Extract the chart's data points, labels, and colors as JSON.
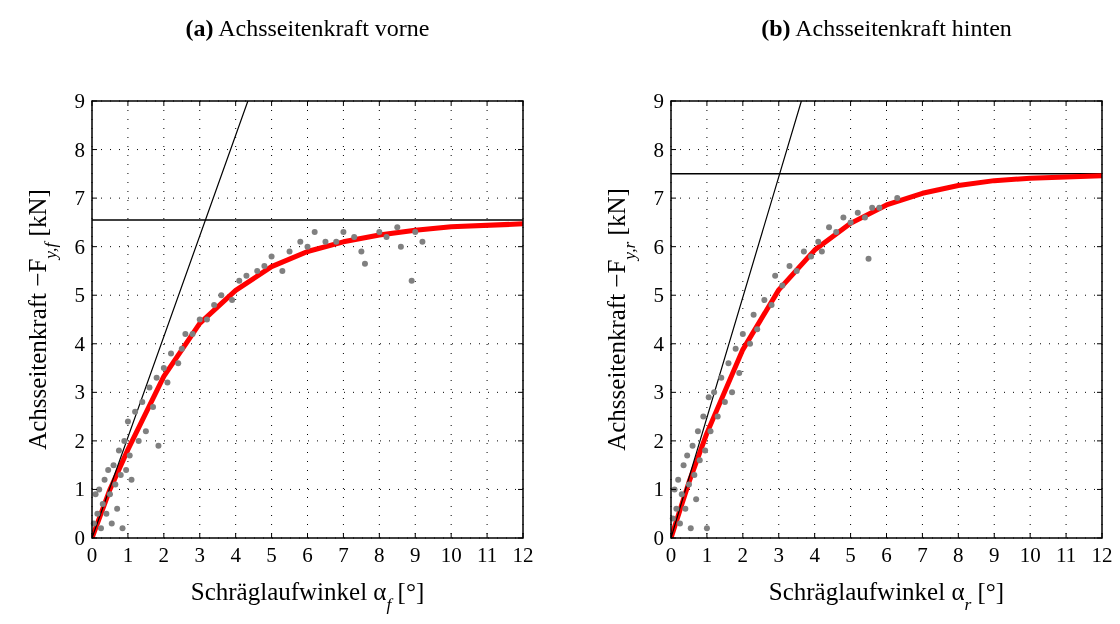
{
  "chart_data": [
    {
      "type": "scatter",
      "title": "(a) Achsseitenkraft vorne",
      "xlabel": "Schräglaufwinkel α$_{f}$ [°]",
      "ylabel": "Achsseitenkraft −F$_{y,f}$ [kN]",
      "xlim": [
        0,
        12
      ],
      "ylim": [
        0,
        9
      ],
      "xticks": [
        0,
        1,
        2,
        3,
        4,
        5,
        6,
        7,
        8,
        9,
        10,
        11,
        12
      ],
      "yticks": [
        0,
        1,
        2,
        3,
        4,
        5,
        6,
        7,
        8,
        9
      ],
      "grid": true,
      "ref_lines": [
        {
          "axis": "y",
          "value": 6.55,
          "color": "#000000"
        }
      ],
      "series": [
        {
          "type": "scatter",
          "color": "#808080",
          "marker": "circle",
          "x": [
            0.05,
            0.1,
            0.15,
            0.2,
            0.25,
            0.3,
            0.35,
            0.4,
            0.45,
            0.5,
            0.55,
            0.6,
            0.65,
            0.7,
            0.75,
            0.8,
            0.85,
            0.9,
            0.95,
            1.0,
            1.05,
            1.1,
            1.2,
            1.3,
            1.4,
            1.5,
            1.6,
            1.7,
            1.8,
            1.85,
            2.0,
            2.1,
            2.2,
            2.4,
            2.5,
            2.6,
            2.8,
            3.0,
            3.2,
            3.4,
            3.6,
            3.9,
            4.1,
            4.3,
            4.6,
            4.8,
            5.0,
            5.3,
            5.5,
            5.8,
            6.0,
            6.2,
            6.5,
            6.8,
            7.0,
            7.3,
            7.5,
            7.6,
            8.0,
            8.2,
            8.5,
            8.6,
            9.0,
            8.9,
            9.2
          ],
          "values": [
            0.3,
            0.9,
            0.5,
            1.0,
            0.2,
            0.7,
            1.2,
            0.5,
            1.4,
            0.9,
            0.3,
            1.5,
            1.1,
            0.6,
            1.8,
            1.3,
            0.2,
            2.0,
            1.4,
            2.4,
            1.7,
            1.2,
            2.6,
            2.0,
            2.8,
            2.2,
            3.1,
            2.7,
            3.3,
            1.9,
            3.5,
            3.2,
            3.8,
            3.6,
            3.9,
            4.2,
            4.2,
            4.5,
            4.5,
            4.8,
            5.0,
            4.9,
            5.3,
            5.4,
            5.5,
            5.6,
            5.8,
            5.5,
            5.9,
            6.1,
            6.0,
            6.3,
            6.1,
            6.1,
            6.3,
            6.2,
            5.9,
            5.65,
            6.3,
            6.2,
            6.4,
            6.0,
            6.3,
            5.3,
            6.1
          ]
        },
        {
          "type": "line",
          "color": "#ff0000",
          "x": [
            0,
            0.5,
            1,
            2,
            3,
            4,
            5,
            6,
            7,
            8,
            9,
            10,
            12
          ],
          "values": [
            0,
            1.0,
            1.82,
            3.33,
            4.42,
            5.1,
            5.59,
            5.9,
            6.1,
            6.24,
            6.34,
            6.41,
            6.47
          ]
        },
        {
          "type": "line",
          "color": "#000000",
          "x": [
            0,
            4.34
          ],
          "values": [
            0,
            9
          ]
        }
      ]
    },
    {
      "type": "scatter",
      "title": "(b) Achsseitenkraft hinten",
      "xlabel": "Schräglaufwinkel α$_{r}$ [°]",
      "ylabel": "Achsseitenkraft −F$_{y,r}$ [kN]",
      "xlim": [
        0,
        12
      ],
      "ylim": [
        0,
        9
      ],
      "xticks": [
        0,
        1,
        2,
        3,
        4,
        5,
        6,
        7,
        8,
        9,
        10,
        11,
        12
      ],
      "yticks": [
        0,
        1,
        2,
        3,
        4,
        5,
        6,
        7,
        8,
        9
      ],
      "grid": true,
      "ref_lines": [
        {
          "axis": "y",
          "value": 7.5,
          "color": "#000000"
        }
      ],
      "series": [
        {
          "type": "scatter",
          "color": "#808080",
          "marker": "circle",
          "x": [
            0.05,
            0.1,
            0.15,
            0.2,
            0.25,
            0.3,
            0.35,
            0.4,
            0.45,
            0.5,
            0.55,
            0.6,
            0.65,
            0.7,
            0.75,
            0.8,
            0.9,
            0.95,
            1.0,
            1.05,
            1.1,
            1.2,
            1.3,
            1.4,
            1.5,
            1.6,
            1.7,
            1.8,
            1.9,
            2.0,
            2.2,
            2.3,
            2.4,
            2.6,
            2.8,
            2.9,
            3.1,
            3.3,
            3.5,
            3.7,
            3.9,
            4.1,
            4.2,
            4.4,
            4.6,
            4.8,
            5.0,
            5.2,
            5.4,
            5.5,
            5.6,
            5.8,
            6.3
          ],
          "values": [
            0.4,
            1.0,
            0.6,
            1.2,
            0.3,
            0.9,
            1.5,
            0.6,
            1.7,
            1.1,
            0.2,
            1.9,
            1.3,
            0.8,
            2.2,
            1.6,
            2.5,
            1.8,
            0.2,
            2.9,
            2.2,
            3.0,
            2.5,
            3.3,
            2.8,
            3.6,
            3.0,
            3.9,
            3.4,
            4.2,
            4.0,
            4.6,
            4.3,
            4.9,
            4.8,
            5.4,
            5.2,
            5.6,
            5.5,
            5.9,
            5.8,
            6.1,
            5.9,
            6.4,
            6.3,
            6.6,
            6.5,
            6.7,
            6.6,
            5.75,
            6.8,
            6.8,
            7.0
          ]
        },
        {
          "type": "line",
          "color": "#ff0000",
          "x": [
            0,
            0.5,
            1,
            2,
            3,
            4,
            5,
            6,
            7,
            8,
            9,
            10,
            12
          ],
          "values": [
            0,
            1.15,
            2.16,
            3.88,
            5.11,
            5.93,
            6.48,
            6.86,
            7.1,
            7.26,
            7.36,
            7.41,
            7.46
          ]
        },
        {
          "type": "line",
          "color": "#000000",
          "x": [
            0,
            3.63
          ],
          "values": [
            0,
            9
          ]
        }
      ]
    }
  ]
}
